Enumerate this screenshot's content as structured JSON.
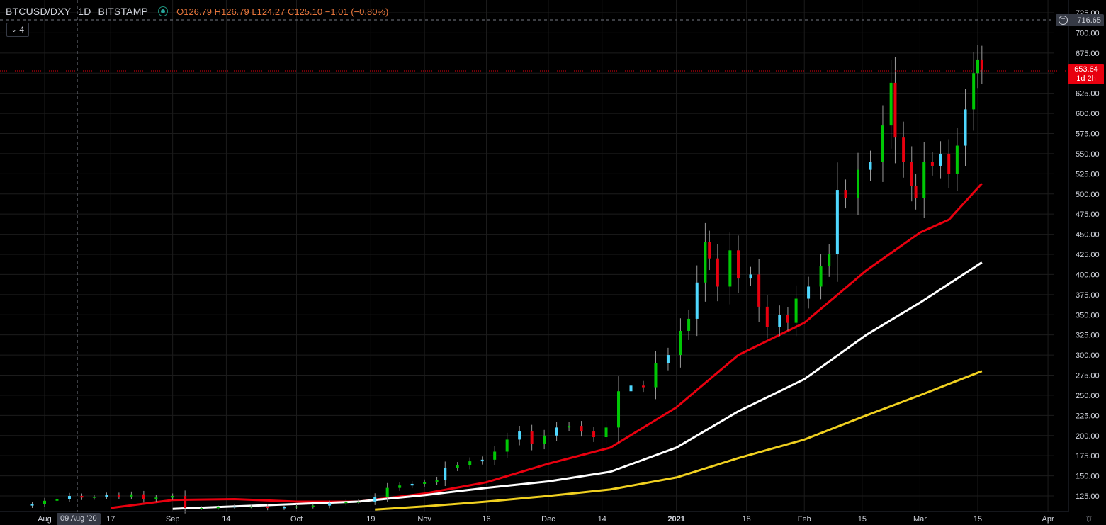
{
  "header": {
    "symbol": "BTCUSD/DXY",
    "interval": "1D",
    "exchange": "BITSTAMP",
    "ohlc": "O126.79 H126.79 L124.27 C125.10 −1.01 (−0.80%)"
  },
  "indicator_count": "4",
  "crosshair": {
    "price_label": "716.65",
    "date_label": "09 Aug '20"
  },
  "last_price": {
    "value": "653.64",
    "countdown": "1d 2h"
  },
  "colors": {
    "background": "#000000",
    "up_candle": "#00c805",
    "up_candle_light": "#4fd8ff",
    "down_candle": "#e8000f",
    "ma_red": "#e8000f",
    "ma_white": "#ffffff",
    "ma_yellow": "#f0d020",
    "grid": "#1e1e1e"
  },
  "chart_data": {
    "type": "candlestick",
    "y_ticks": [
      "725.00",
      "700.00",
      "675.00",
      "650.00",
      "625.00",
      "600.00",
      "575.00",
      "550.00",
      "525.00",
      "500.00",
      "475.00",
      "450.00",
      "425.00",
      "400.00",
      "375.00",
      "350.00",
      "325.00",
      "300.00",
      "275.00",
      "250.00",
      "225.00",
      "200.00",
      "175.00",
      "150.00",
      "125.00"
    ],
    "x_ticks": [
      "Aug",
      "17",
      "Sep",
      "14",
      "Oct",
      "19",
      "Nov",
      "16",
      "Dec",
      "14",
      "2021",
      "18",
      "Feb",
      "15",
      "Mar",
      "15",
      "Apr"
    ],
    "ylim": [
      110,
      730
    ],
    "close_series": [
      [
        "2020-07-29",
        115
      ],
      [
        "2020-08-01",
        119
      ],
      [
        "2020-08-04",
        121
      ],
      [
        "2020-08-07",
        125
      ],
      [
        "2020-08-10",
        123
      ],
      [
        "2020-08-13",
        124
      ],
      [
        "2020-08-16",
        126
      ],
      [
        "2020-08-19",
        124
      ],
      [
        "2020-08-22",
        127
      ],
      [
        "2020-08-25",
        121
      ],
      [
        "2020-08-28",
        123
      ],
      [
        "2020-09-01",
        125
      ],
      [
        "2020-09-04",
        110
      ],
      [
        "2020-09-08",
        110
      ],
      [
        "2020-09-12",
        111
      ],
      [
        "2020-09-16",
        112
      ],
      [
        "2020-09-20",
        112
      ],
      [
        "2020-09-24",
        110
      ],
      [
        "2020-09-28",
        111
      ],
      [
        "2020-10-01",
        112
      ],
      [
        "2020-10-05",
        113
      ],
      [
        "2020-10-09",
        116
      ],
      [
        "2020-10-13",
        118
      ],
      [
        "2020-10-16",
        118
      ],
      [
        "2020-10-20",
        124
      ],
      [
        "2020-10-23",
        135
      ],
      [
        "2020-10-26",
        138
      ],
      [
        "2020-10-29",
        140
      ],
      [
        "2020-11-01",
        142
      ],
      [
        "2020-11-04",
        145
      ],
      [
        "2020-11-06",
        160
      ],
      [
        "2020-11-09",
        163
      ],
      [
        "2020-11-12",
        168
      ],
      [
        "2020-11-15",
        170
      ],
      [
        "2020-11-18",
        180
      ],
      [
        "2020-11-21",
        195
      ],
      [
        "2020-11-24",
        205
      ],
      [
        "2020-11-27",
        190
      ],
      [
        "2020-11-30",
        200
      ],
      [
        "2020-12-03",
        210
      ],
      [
        "2020-12-06",
        212
      ],
      [
        "2020-12-09",
        205
      ],
      [
        "2020-12-12",
        198
      ],
      [
        "2020-12-15",
        210
      ],
      [
        "2020-12-18",
        255
      ],
      [
        "2020-12-21",
        262
      ],
      [
        "2020-12-24",
        260
      ],
      [
        "2020-12-27",
        290
      ],
      [
        "2020-12-30",
        300
      ],
      [
        "2021-01-02",
        330
      ],
      [
        "2021-01-04",
        345
      ],
      [
        "2021-01-06",
        390
      ],
      [
        "2021-01-08",
        440
      ],
      [
        "2021-01-09",
        420
      ],
      [
        "2021-01-11",
        385
      ],
      [
        "2021-01-14",
        430
      ],
      [
        "2021-01-16",
        395
      ],
      [
        "2021-01-19",
        400
      ],
      [
        "2021-01-21",
        360
      ],
      [
        "2021-01-23",
        335
      ],
      [
        "2021-01-26",
        350
      ],
      [
        "2021-01-28",
        340
      ],
      [
        "2021-01-30",
        370
      ],
      [
        "2021-02-02",
        385
      ],
      [
        "2021-02-05",
        410
      ],
      [
        "2021-02-07",
        425
      ],
      [
        "2021-02-09",
        505
      ],
      [
        "2021-02-11",
        495
      ],
      [
        "2021-02-14",
        530
      ],
      [
        "2021-02-17",
        540
      ],
      [
        "2021-02-20",
        585
      ],
      [
        "2021-02-22",
        638
      ],
      [
        "2021-02-23",
        570
      ],
      [
        "2021-02-25",
        540
      ],
      [
        "2021-02-27",
        510
      ],
      [
        "2021-02-28",
        495
      ],
      [
        "2021-03-02",
        540
      ],
      [
        "2021-03-04",
        535
      ],
      [
        "2021-03-06",
        550
      ],
      [
        "2021-03-08",
        525
      ],
      [
        "2021-03-10",
        560
      ],
      [
        "2021-03-12",
        605
      ],
      [
        "2021-03-14",
        650
      ],
      [
        "2021-03-15",
        667
      ],
      [
        "2021-03-16",
        654
      ]
    ],
    "ma_series": [
      {
        "color": "red",
        "points": [
          [
            "2020-08-17",
            110
          ],
          [
            "2020-09-01",
            120
          ],
          [
            "2020-09-16",
            121
          ],
          [
            "2020-10-01",
            118
          ],
          [
            "2020-10-16",
            118
          ],
          [
            "2020-11-01",
            128
          ],
          [
            "2020-11-16",
            142
          ],
          [
            "2020-12-01",
            165
          ],
          [
            "2020-12-16",
            185
          ],
          [
            "2021-01-01",
            235
          ],
          [
            "2021-01-16",
            300
          ],
          [
            "2021-02-01",
            340
          ],
          [
            "2021-02-16",
            405
          ],
          [
            "2021-03-01",
            452
          ],
          [
            "2021-03-08",
            468
          ],
          [
            "2021-03-16",
            513
          ]
        ]
      },
      {
        "color": "white",
        "points": [
          [
            "2020-09-01",
            109
          ],
          [
            "2020-09-16",
            112
          ],
          [
            "2020-10-01",
            115
          ],
          [
            "2020-10-16",
            118
          ],
          [
            "2020-11-01",
            126
          ],
          [
            "2020-11-16",
            135
          ],
          [
            "2020-12-01",
            143
          ],
          [
            "2020-12-16",
            155
          ],
          [
            "2021-01-01",
            185
          ],
          [
            "2021-01-16",
            230
          ],
          [
            "2021-02-01",
            270
          ],
          [
            "2021-02-16",
            325
          ],
          [
            "2021-03-01",
            365
          ],
          [
            "2021-03-16",
            415
          ]
        ]
      },
      {
        "color": "yellow",
        "points": [
          [
            "2020-10-20",
            108
          ],
          [
            "2020-11-01",
            112
          ],
          [
            "2020-11-16",
            118
          ],
          [
            "2020-12-01",
            125
          ],
          [
            "2020-12-16",
            133
          ],
          [
            "2021-01-01",
            148
          ],
          [
            "2021-01-16",
            172
          ],
          [
            "2021-02-01",
            195
          ],
          [
            "2021-02-16",
            225
          ],
          [
            "2021-03-01",
            250
          ],
          [
            "2021-03-16",
            280
          ]
        ]
      }
    ]
  }
}
